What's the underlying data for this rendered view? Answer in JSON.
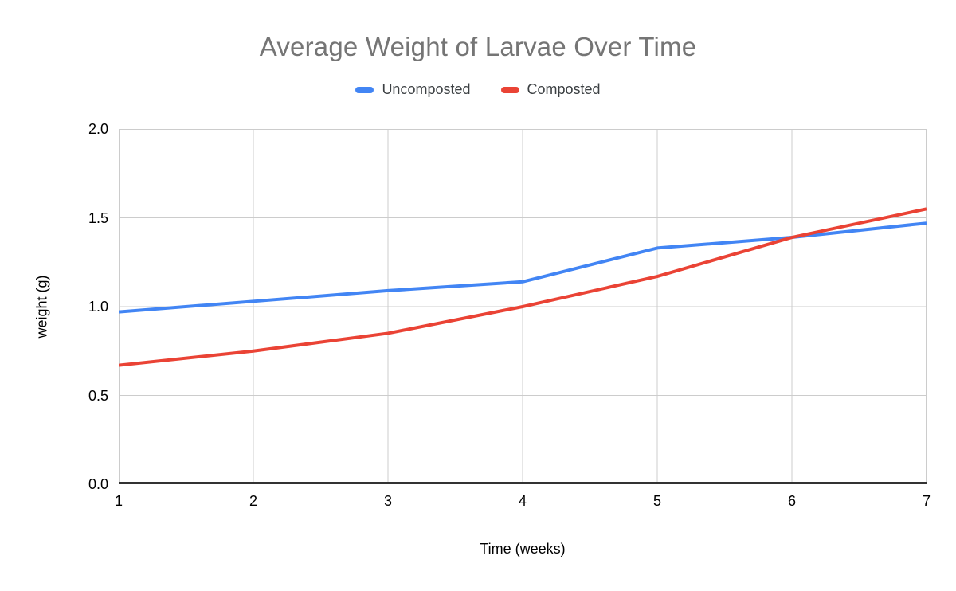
{
  "chart_data": {
    "type": "line",
    "title": "Average Weight of Larvae Over Time",
    "xlabel": "Time (weeks)",
    "ylabel": "weight (g)",
    "x": [
      1,
      2,
      3,
      4,
      5,
      6,
      7
    ],
    "series": [
      {
        "name": "Uncomposted",
        "color": "#4285F4",
        "values": [
          0.97,
          1.03,
          1.09,
          1.14,
          1.33,
          1.39,
          1.47
        ]
      },
      {
        "name": "Composted",
        "color": "#EA4335",
        "values": [
          0.67,
          0.75,
          0.85,
          1.0,
          1.17,
          1.39,
          1.55
        ]
      }
    ],
    "xlim": [
      1,
      7
    ],
    "ylim": [
      0,
      2
    ],
    "xticks": [
      1,
      2,
      3,
      4,
      5,
      6,
      7
    ],
    "xtick_labels": [
      "1",
      "2",
      "3",
      "4",
      "5",
      "6",
      "7"
    ],
    "yticks": [
      0,
      0.5,
      1,
      1.5,
      2
    ],
    "ytick_labels": [
      "0.0",
      "0.5",
      "1.0",
      "1.5",
      "2.0"
    ],
    "grid": true,
    "legend_position": "top",
    "line_width": 4
  },
  "colors": {
    "title_text": "#757575",
    "legend_text": "#3c4043",
    "axis_text": "#000000",
    "gridline": "#cccccc",
    "axis_line": "#333333",
    "background": "#ffffff"
  }
}
